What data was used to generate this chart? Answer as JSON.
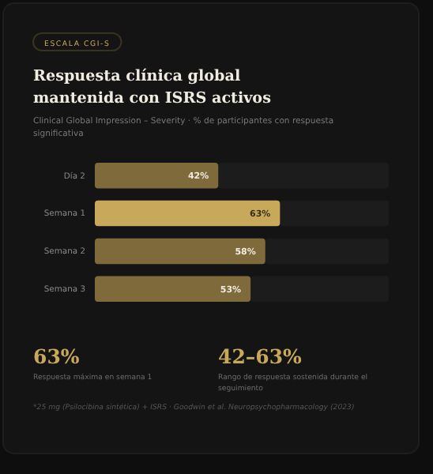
{
  "chart_data": {
    "type": "bar",
    "orientation": "horizontal",
    "title": "Respuesta clínica global mantenida con ISRS activos",
    "subtitle": "Clinical Global Impression – Severity · % de participantes con respuesta significativa",
    "categories": [
      "Día 2",
      "Semana 1",
      "Semana 2",
      "Semana 3"
    ],
    "values": [
      42,
      63,
      58,
      53
    ],
    "value_labels": [
      "42%",
      "63%",
      "58%",
      "53%"
    ],
    "colors": [
      "#7f6a3c",
      "#c8a95c",
      "#7f6a3c",
      "#7f6a3c"
    ],
    "xlim": [
      0,
      100
    ],
    "tick_labels": "y",
    "annotations": [
      "ESCALA CGI-S",
      "63%",
      "Respuesta máxima en semana 1",
      "42–63%",
      "Rango de respuesta sostenida durante el seguimiento",
      "*25 mg (Psilocibina sintética) + ISRS · Goodwin et al. Neuropsychopharmacology (2023)"
    ]
  }
}
